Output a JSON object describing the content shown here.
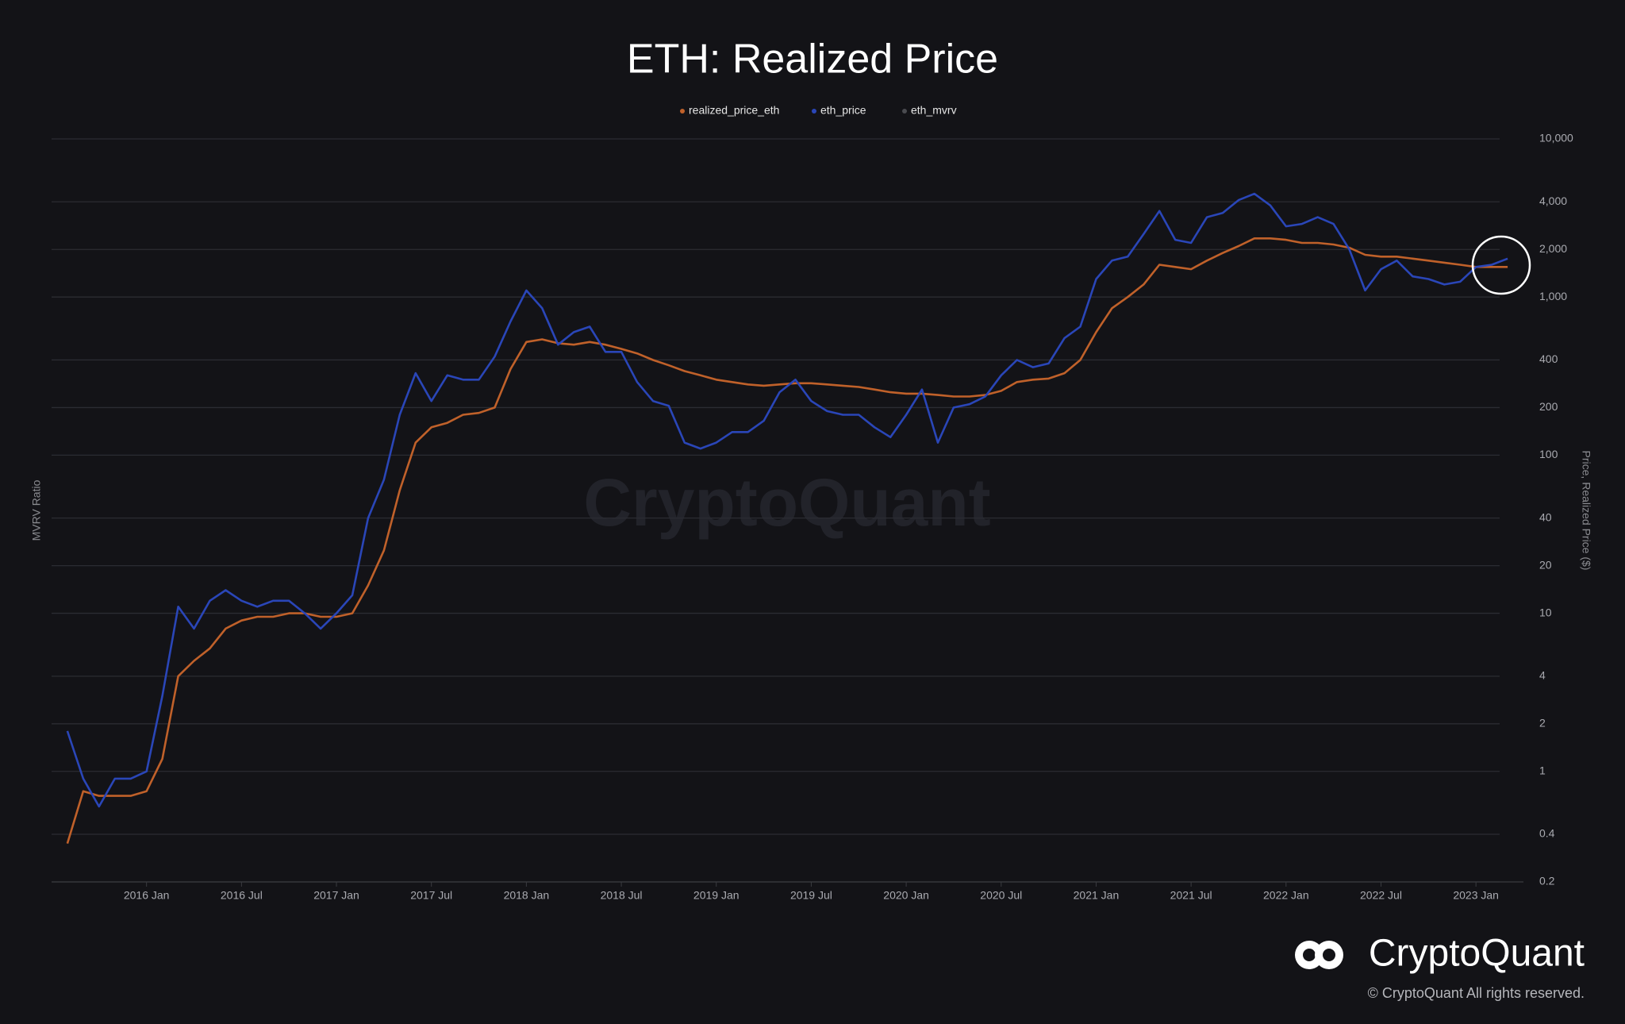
{
  "chart_data": {
    "type": "line",
    "title": "ETH: Realized Price",
    "y_label": "Price, Realized Price ($)",
    "y2_label": "MVRV Ratio",
    "watermark": "CryptoQuant",
    "brand": "CryptoQuant",
    "copyright": "© CryptoQuant All rights reserved.",
    "log_scale": true,
    "grid": true,
    "x": [
      "2015-08",
      "2015-09",
      "2015-10",
      "2015-11",
      "2015-12",
      "2016-01",
      "2016-02",
      "2016-03",
      "2016-04",
      "2016-05",
      "2016-06",
      "2016-07",
      "2016-08",
      "2016-09",
      "2016-10",
      "2016-11",
      "2016-12",
      "2017-01",
      "2017-02",
      "2017-03",
      "2017-04",
      "2017-05",
      "2017-06",
      "2017-07",
      "2017-08",
      "2017-09",
      "2017-10",
      "2017-11",
      "2017-12",
      "2018-01",
      "2018-02",
      "2018-03",
      "2018-04",
      "2018-05",
      "2018-06",
      "2018-07",
      "2018-08",
      "2018-09",
      "2018-10",
      "2018-11",
      "2018-12",
      "2019-01",
      "2019-02",
      "2019-03",
      "2019-04",
      "2019-05",
      "2019-06",
      "2019-07",
      "2019-08",
      "2019-09",
      "2019-10",
      "2019-11",
      "2019-12",
      "2020-01",
      "2020-02",
      "2020-03",
      "2020-04",
      "2020-05",
      "2020-06",
      "2020-07",
      "2020-08",
      "2020-09",
      "2020-10",
      "2020-11",
      "2020-12",
      "2021-01",
      "2021-02",
      "2021-03",
      "2021-04",
      "2021-05",
      "2021-06",
      "2021-07",
      "2021-08",
      "2021-09",
      "2021-10",
      "2021-11",
      "2021-12",
      "2022-01",
      "2022-02",
      "2022-03",
      "2022-04",
      "2022-05",
      "2022-06",
      "2022-07",
      "2022-08",
      "2022-09",
      "2022-10",
      "2022-11",
      "2022-12",
      "2023-01",
      "2023-02",
      "2023-03"
    ],
    "series": [
      {
        "name": "realized_price_eth",
        "color": "#c0612a",
        "values": [
          0.35,
          0.75,
          0.7,
          0.7,
          0.7,
          0.75,
          1.2,
          4,
          5,
          6,
          8,
          9,
          9.5,
          9.5,
          10,
          10,
          9.5,
          9.5,
          10,
          15,
          25,
          60,
          120,
          150,
          160,
          180,
          185,
          200,
          350,
          520,
          540,
          510,
          500,
          520,
          500,
          470,
          440,
          400,
          370,
          340,
          320,
          300,
          290,
          280,
          275,
          280,
          285,
          285,
          280,
          275,
          270,
          260,
          250,
          245,
          245,
          240,
          235,
          235,
          240,
          255,
          290,
          300,
          305,
          330,
          400,
          600,
          850,
          1000,
          1200,
          1600,
          1550,
          1500,
          1700,
          1900,
          2100,
          2350,
          2350,
          2300,
          2200,
          2200,
          2150,
          2050,
          1850,
          1800,
          1800,
          1750,
          1700,
          1650,
          1600,
          1550,
          1550,
          1550
        ]
      },
      {
        "name": "eth_price",
        "color": "#2a46b8",
        "values": [
          1.8,
          0.9,
          0.6,
          0.9,
          0.9,
          1.0,
          3.0,
          11,
          8,
          12,
          14,
          12,
          11,
          12,
          12,
          10,
          8,
          10,
          13,
          40,
          70,
          180,
          330,
          220,
          320,
          300,
          300,
          420,
          700,
          1100,
          850,
          500,
          600,
          650,
          450,
          450,
          290,
          220,
          205,
          120,
          110,
          120,
          140,
          140,
          165,
          250,
          300,
          220,
          190,
          180,
          180,
          150,
          130,
          180,
          260,
          120,
          200,
          210,
          235,
          320,
          400,
          360,
          380,
          550,
          650,
          1300,
          1700,
          1800,
          2500,
          3500,
          2300,
          2200,
          3200,
          3400,
          4100,
          4500,
          3800,
          2800,
          2900,
          3200,
          2900,
          2000,
          1100,
          1500,
          1700,
          1350,
          1300,
          1200,
          1250,
          1550,
          1600,
          1750
        ]
      }
    ],
    "hidden_series": [
      {
        "name": "eth_mvrv",
        "color": "#4a4b50"
      }
    ],
    "xlim": [
      "2015-07",
      "2023-04"
    ],
    "xticks": [
      {
        "value": "2016-01",
        "label": "2016 Jan"
      },
      {
        "value": "2016-07",
        "label": "2016 Jul"
      },
      {
        "value": "2017-01",
        "label": "2017 Jan"
      },
      {
        "value": "2017-07",
        "label": "2017 Jul"
      },
      {
        "value": "2018-01",
        "label": "2018 Jan"
      },
      {
        "value": "2018-07",
        "label": "2018 Jul"
      },
      {
        "value": "2019-01",
        "label": "2019 Jan"
      },
      {
        "value": "2019-07",
        "label": "2019 Jul"
      },
      {
        "value": "2020-01",
        "label": "2020 Jan"
      },
      {
        "value": "2020-07",
        "label": "2020 Jul"
      },
      {
        "value": "2021-01",
        "label": "2021 Jan"
      },
      {
        "value": "2021-07",
        "label": "2021 Jul"
      },
      {
        "value": "2022-01",
        "label": "2022 Jan"
      },
      {
        "value": "2022-07",
        "label": "2022 Jul"
      },
      {
        "value": "2023-01",
        "label": "2023 Jan"
      }
    ],
    "ylim": [
      0.2,
      10000
    ],
    "yticks": [
      {
        "value": 10000,
        "label": "10,000"
      },
      {
        "value": 4000,
        "label": "4,000"
      },
      {
        "value": 2000,
        "label": "2,000"
      },
      {
        "value": 1000,
        "label": "1,000"
      },
      400,
      200,
      100,
      40,
      20,
      10,
      4,
      2,
      1,
      0.4,
      0.2
    ]
  }
}
